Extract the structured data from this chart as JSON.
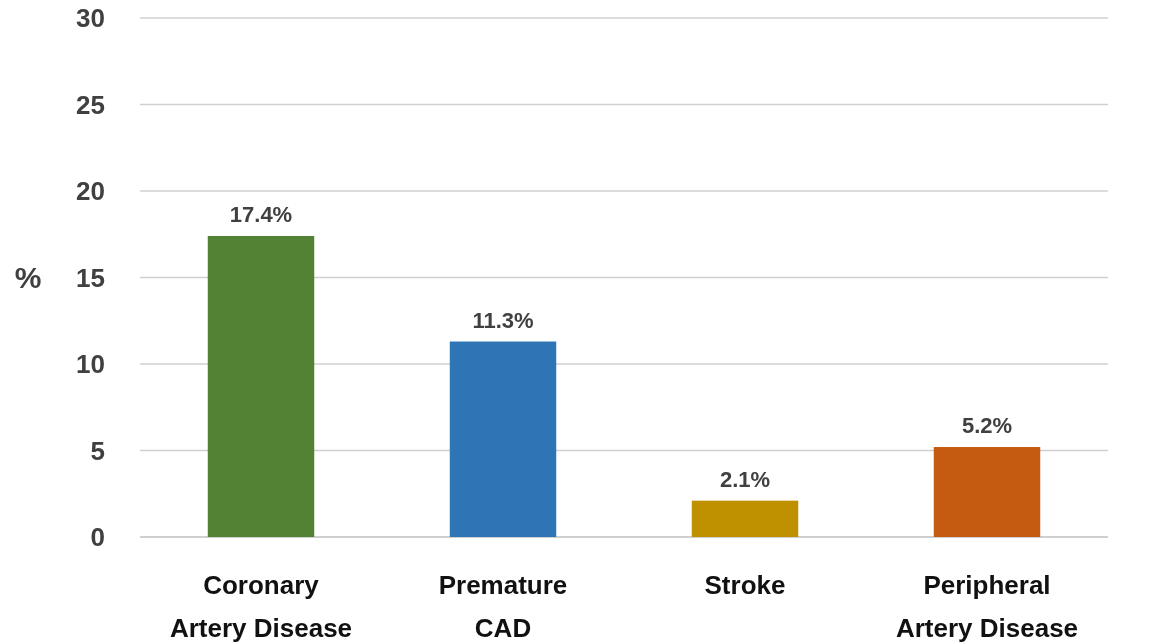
{
  "chart_data": {
    "type": "bar",
    "ylabel": "%",
    "categories": [
      "Coronary\nArtery Disease",
      "Premature\nCAD",
      "Stroke",
      "Peripheral\nArtery Disease"
    ],
    "values": [
      17.4,
      11.3,
      2.1,
      5.2
    ],
    "colors": [
      "#548235",
      "#2e75b6",
      "#bf9000",
      "#c55a11"
    ],
    "value_labels": [
      "17.4%",
      "11.3%",
      "2.1%",
      "5.2%"
    ],
    "ylim": [
      0,
      30
    ],
    "yticks": [
      0,
      5,
      10,
      15,
      20,
      25,
      30
    ],
    "grid": "y"
  }
}
